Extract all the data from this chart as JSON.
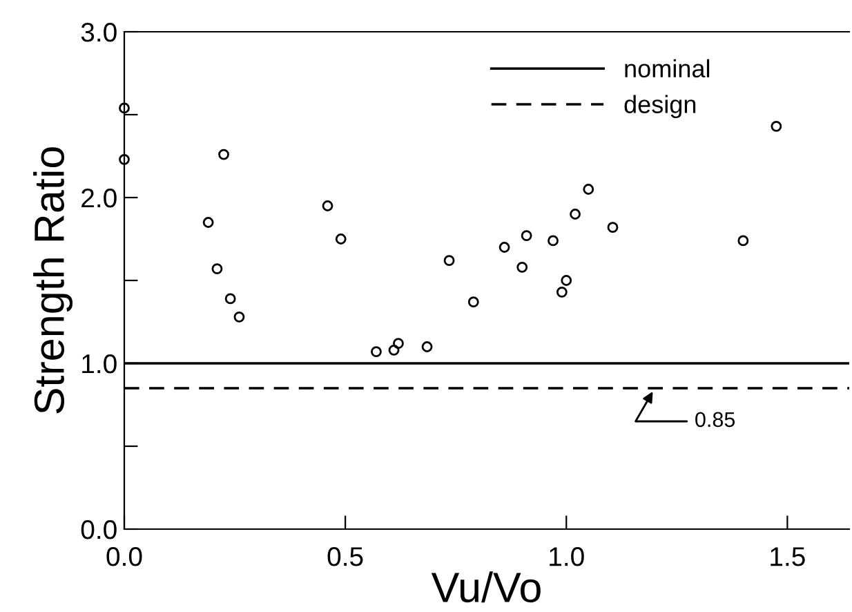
{
  "chart_data": {
    "type": "scatter",
    "xlabel": "Vu/Vo",
    "ylabel": "Strength Ratio",
    "x": [
      0,
      0,
      0.19,
      0.225,
      0.21,
      0.24,
      0.26,
      0.46,
      0.49,
      0.57,
      0.61,
      0.62,
      0.685,
      0.735,
      0.79,
      0.86,
      0.9,
      0.91,
      0.97,
      0.99,
      1.0,
      1.02,
      1.05,
      1.105,
      1.4,
      1.475
    ],
    "series": [
      {
        "color": "#000000",
        "values": [
          2.54,
          2.23,
          1.85,
          2.26,
          1.57,
          1.39,
          1.28,
          1.95,
          1.75,
          1.07,
          1.08,
          1.12,
          1.1,
          1.62,
          1.37,
          1.7,
          1.58,
          1.77,
          1.74,
          1.43,
          1.5,
          1.9,
          2.05,
          1.82,
          1.74,
          2.43
        ]
      }
    ],
    "marker": "circle",
    "xlim": [
      0,
      1.64
    ],
    "ylim": [
      0,
      3.0
    ],
    "xticks": [
      {
        "value": 0,
        "label": "0.0"
      },
      0.5,
      {
        "value": 1,
        "label": "1.0"
      },
      1.5
    ],
    "yticks": [
      {
        "value": 0,
        "label": "0.0"
      },
      {
        "value": 0.5,
        "label": null
      },
      {
        "value": 1,
        "label": "1.0"
      },
      {
        "value": 1.5,
        "label": null
      },
      {
        "value": 2,
        "label": "2.0"
      },
      {
        "value": 2.5,
        "label": null
      },
      {
        "value": 3,
        "label": "3.0"
      }
    ],
    "ref_lines": [
      {
        "axis": "y",
        "value": 1.0,
        "label": "nominal",
        "color": "#000000",
        "line_style": "solid"
      },
      {
        "axis": "y",
        "value": 0.85,
        "label": "design",
        "color": "#000000",
        "line_style": "dashed"
      }
    ],
    "annotations": [
      {
        "text": "0.85",
        "x": 1.2,
        "y": 0.85
      }
    ],
    "legend": "top right",
    "grid": false
  }
}
